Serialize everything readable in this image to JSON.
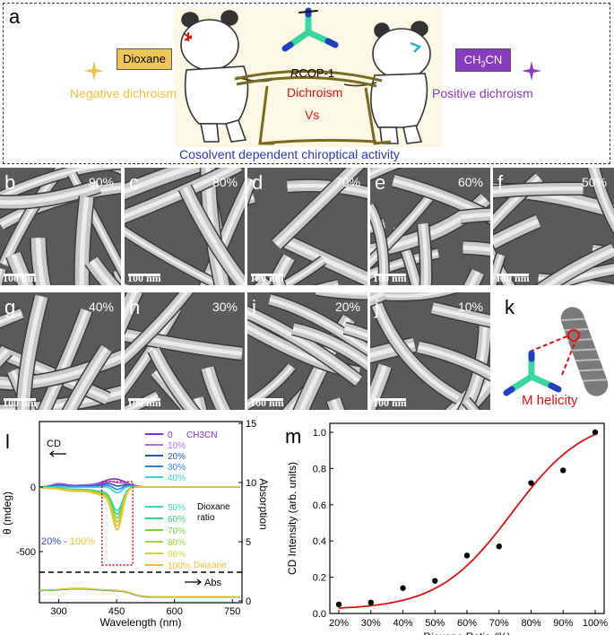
{
  "panel_a": {
    "letter": "a",
    "dioxane_box": "Dioxane",
    "ch3cn_box_main": "CH",
    "ch3cn_box_sub": "3",
    "ch3cn_box_tail": "CN",
    "negative": "Negative dichroism",
    "positive": "Positive dichroism",
    "rcop_italic": "R",
    "rcop_rest": "COP-1",
    "dichroism": "Dichroism",
    "vs": "Vs",
    "caption": "Cosolvent dependent chiroptical activity"
  },
  "sem": {
    "scale_text": "100 nm",
    "panels": [
      {
        "letter": "b",
        "pct": "90%"
      },
      {
        "letter": "c",
        "pct": "80%"
      },
      {
        "letter": "d",
        "pct": "70%"
      },
      {
        "letter": "e",
        "pct": "60%"
      },
      {
        "letter": "f",
        "pct": "50%"
      },
      {
        "letter": "g",
        "pct": "40%"
      },
      {
        "letter": "h",
        "pct": "30%"
      },
      {
        "letter": "i",
        "pct": "20%"
      },
      {
        "letter": "j",
        "pct": "10%"
      }
    ]
  },
  "panel_k": {
    "letter": "k",
    "label": "M helicity"
  },
  "panel_l": {
    "letter": "l",
    "cd_label": "CD",
    "abs_label": "Abs",
    "ylabel_left": "θ (mdeg)",
    "ylabel_right": "Absorption",
    "xlabel": "Wavelength (nm)",
    "range_a": "20%",
    "range_b": " - ",
    "range_c": "100%",
    "legend_top": [
      {
        "label": "0",
        "color": "#8a2be2"
      },
      {
        "label": "10%",
        "color": "#b06ee8"
      },
      {
        "label": "20%",
        "color": "#2a4ed8"
      },
      {
        "label": "30%",
        "color": "#2f7fe0"
      },
      {
        "label": "40%",
        "color": "#2fd4dc"
      }
    ],
    "legend_top_solvent": "CH3CN",
    "legend_bottom": [
      {
        "label": "50%",
        "color": "#2fe0c4"
      },
      {
        "label": "60%",
        "color": "#3fd07a"
      },
      {
        "label": "70%",
        "color": "#7ed03f"
      },
      {
        "label": "80%",
        "color": "#a8d43a"
      },
      {
        "label": "90%",
        "color": "#d6d636"
      },
      {
        "label": "100%",
        "color": "#f0c030"
      }
    ],
    "legend_bottom_solvent": "Dioxane",
    "dioxane_ratio": "Dioxane ratio",
    "x_ticks": [
      "300",
      "450",
      "600",
      "750"
    ],
    "y_left_ticks": [
      "0",
      "-500"
    ],
    "y_right_ticks": [
      "15",
      "10",
      "5",
      "0"
    ]
  },
  "chart_data": {
    "type": "scatter",
    "title": "",
    "xlabel": "Dioxane Ratio (%)",
    "ylabel": "CD Intensity (arb. units)",
    "categories": [
      "20%",
      "30%",
      "40%",
      "50%",
      "60%",
      "70%",
      "80%",
      "90%",
      "100%"
    ],
    "x": [
      20,
      30,
      40,
      50,
      60,
      70,
      80,
      90,
      100
    ],
    "values": [
      0.05,
      0.06,
      0.14,
      0.18,
      0.32,
      0.37,
      0.72,
      0.79,
      1.0
    ],
    "fit_color": "#e01010",
    "point_color": "#000000",
    "ylim": [
      0.0,
      1.0
    ],
    "y_ticks": [
      "0.0",
      "0.2",
      "0.4",
      "0.6",
      "0.8",
      "1.0"
    ],
    "panel_letter": "m"
  }
}
